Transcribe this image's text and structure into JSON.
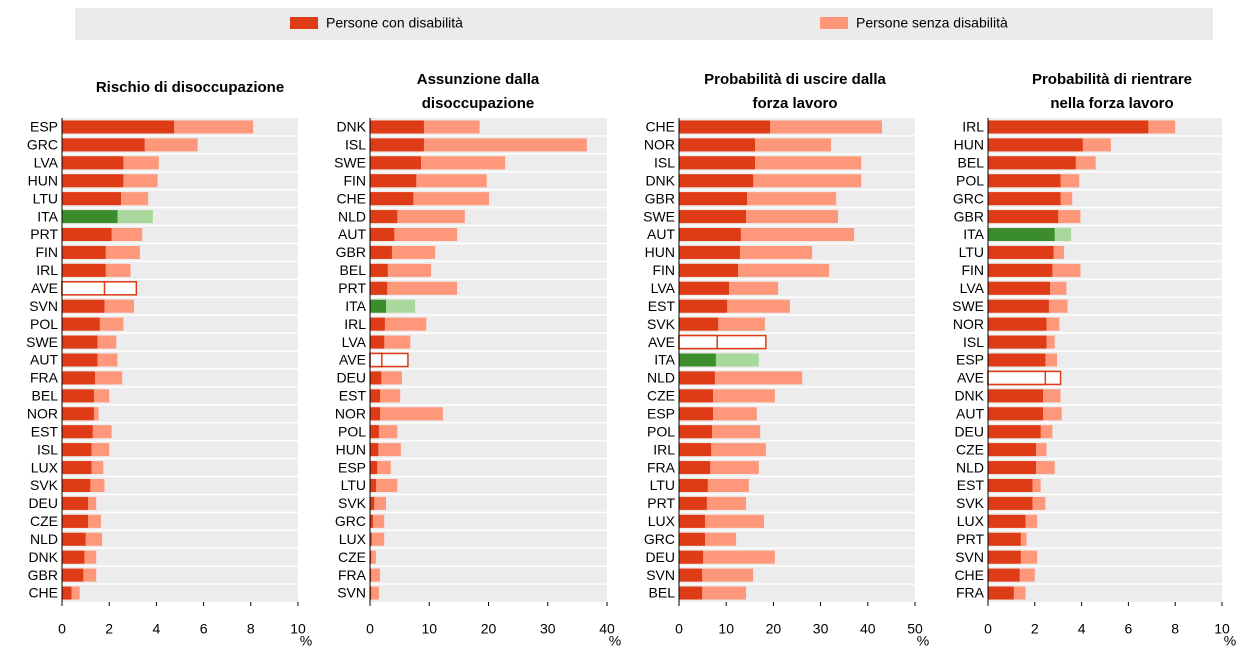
{
  "legend_position": "top",
  "chart_data": [
    {
      "type": "bar",
      "orientation": "horizontal",
      "title": [
        "Rischio di disoccupazione"
      ],
      "x_unit": "%",
      "highlight_category": "ITA",
      "outline_category": "AVE",
      "categories": [
        "ESP",
        "GRC",
        "LVA",
        "HUN",
        "LTU",
        "ITA",
        "PRT",
        "FIN",
        "IRL",
        "AVE",
        "SVN",
        "POL",
        "SWE",
        "AUT",
        "FRA",
        "BEL",
        "NOR",
        "EST",
        "ISL",
        "LUX",
        "SVK",
        "DEU",
        "CZE",
        "NLD",
        "DNK",
        "GBR",
        "CHE"
      ],
      "series": [
        {
          "name": "Persone senza disabilità",
          "color": "#ff977a",
          "highlight_color": "#a8d89c",
          "values": [
            8.1,
            5.75,
            4.1,
            4.05,
            3.65,
            3.85,
            3.4,
            3.3,
            2.9,
            3.15,
            3.05,
            2.6,
            2.3,
            2.35,
            2.55,
            2.0,
            1.55,
            2.1,
            2.0,
            1.75,
            1.8,
            1.45,
            1.65,
            1.7,
            1.45,
            1.45,
            0.75
          ]
        },
        {
          "name": "Persone con disabilità",
          "color": "#de3b17",
          "highlight_color": "#3b8c2c",
          "values": [
            4.75,
            3.5,
            2.6,
            2.6,
            2.5,
            2.35,
            2.1,
            1.85,
            1.85,
            1.8,
            1.8,
            1.6,
            1.5,
            1.5,
            1.4,
            1.35,
            1.35,
            1.3,
            1.25,
            1.25,
            1.2,
            1.1,
            1.1,
            1.0,
            0.95,
            0.9,
            0.4
          ]
        }
      ],
      "xlim": [
        0,
        10
      ],
      "xticks": [
        0,
        2,
        4,
        6,
        8,
        10
      ]
    },
    {
      "type": "bar",
      "orientation": "horizontal",
      "title": [
        "Assunzione dalla",
        "disoccupazione"
      ],
      "x_unit": "%",
      "highlight_category": "ITA",
      "outline_category": "AVE",
      "categories": [
        "DNK",
        "ISL",
        "SWE",
        "FIN",
        "CHE",
        "NLD",
        "AUT",
        "GBR",
        "BEL",
        "PRT",
        "ITA",
        "IRL",
        "LVA",
        "AVE",
        "DEU",
        "EST",
        "NOR",
        "POL",
        "HUN",
        "ESP",
        "LTU",
        "SVK",
        "GRC",
        "LUX",
        "CZE",
        "FRA",
        "SVN"
      ],
      "series": [
        {
          "name": "Persone senza disabilità",
          "color": "#ff977a",
          "highlight_color": "#a8d89c",
          "values": [
            18.5,
            36.6,
            22.8,
            19.7,
            20.1,
            16.0,
            14.7,
            11.0,
            10.3,
            14.7,
            7.6,
            9.5,
            6.8,
            6.4,
            5.4,
            5.1,
            12.3,
            4.6,
            5.2,
            3.5,
            4.6,
            2.7,
            2.4,
            2.4,
            1.0,
            1.7,
            1.5
          ]
        },
        {
          "name": "Persone con disabilità",
          "color": "#de3b17",
          "highlight_color": "#3b8c2c",
          "values": [
            9.1,
            9.1,
            8.6,
            7.8,
            7.3,
            4.6,
            4.1,
            3.7,
            3.0,
            2.9,
            2.7,
            2.5,
            2.4,
            2.0,
            1.9,
            1.7,
            1.7,
            1.5,
            1.4,
            1.2,
            1.0,
            0.7,
            0.5,
            0.3,
            0.2,
            0.2,
            0.2
          ]
        }
      ],
      "xlim": [
        0,
        40
      ],
      "xticks": [
        0,
        10,
        20,
        30,
        40
      ]
    },
    {
      "type": "bar",
      "orientation": "horizontal",
      "title": [
        "Probabilità di uscire dalla",
        "forza lavoro"
      ],
      "x_unit": "%",
      "highlight_category": "ITA",
      "outline_category": "AVE",
      "categories": [
        "CHE",
        "NOR",
        "ISL",
        "DNK",
        "GBR",
        "SWE",
        "AUT",
        "HUN",
        "FIN",
        "LVA",
        "EST",
        "SVK",
        "AVE",
        "ITA",
        "NLD",
        "CZE",
        "ESP",
        "POL",
        "IRL",
        "FRA",
        "LTU",
        "PRT",
        "LUX",
        "GRC",
        "DEU",
        "SVN",
        "BEL"
      ],
      "series": [
        {
          "name": "Persone senza disabilità",
          "color": "#ff977a",
          "highlight_color": "#a8d89c",
          "values": [
            43.0,
            32.2,
            38.6,
            38.6,
            33.3,
            33.7,
            37.1,
            28.2,
            31.8,
            21.0,
            23.5,
            18.2,
            18.4,
            16.9,
            26.1,
            20.3,
            16.5,
            17.2,
            18.4,
            16.9,
            14.8,
            14.2,
            18.0,
            12.1,
            20.3,
            15.7,
            14.2
          ]
        },
        {
          "name": "Persone con disabilità",
          "color": "#de3b17",
          "highlight_color": "#3b8c2c",
          "values": [
            19.3,
            16.1,
            16.1,
            15.7,
            14.4,
            14.2,
            13.1,
            12.9,
            12.5,
            10.6,
            10.2,
            8.3,
            8.1,
            7.8,
            7.6,
            7.2,
            7.2,
            7.0,
            6.8,
            6.6,
            6.1,
            5.9,
            5.5,
            5.5,
            5.1,
            4.9,
            4.9
          ]
        }
      ],
      "xlim": [
        0,
        50
      ],
      "xticks": [
        0,
        10,
        20,
        30,
        40,
        50
      ]
    },
    {
      "type": "bar",
      "orientation": "horizontal",
      "title": [
        "Probabilità di rientrare",
        "nella forza lavoro"
      ],
      "x_unit": "%",
      "highlight_category": "ITA",
      "outline_category": "AVE",
      "categories": [
        "IRL",
        "HUN",
        "BEL",
        "POL",
        "GRC",
        "GBR",
        "ITA",
        "LTU",
        "FIN",
        "LVA",
        "SWE",
        "NOR",
        "ISL",
        "ESP",
        "AVE",
        "DNK",
        "AUT",
        "DEU",
        "CZE",
        "NLD",
        "EST",
        "SVK",
        "LUX",
        "PRT",
        "SVN",
        "CHE",
        "FRA"
      ],
      "series": [
        {
          "name": "Persone senza disabilità",
          "color": "#ff977a",
          "highlight_color": "#a8d89c",
          "values": [
            8.0,
            5.25,
            4.6,
            3.9,
            3.6,
            3.95,
            3.55,
            3.25,
            3.95,
            3.35,
            3.4,
            3.05,
            2.85,
            2.95,
            3.1,
            3.1,
            3.15,
            2.75,
            2.5,
            2.85,
            2.25,
            2.45,
            2.1,
            1.65,
            2.1,
            2.0,
            1.6
          ]
        },
        {
          "name": "Persone con disabilità",
          "color": "#de3b17",
          "highlight_color": "#3b8c2c",
          "values": [
            6.85,
            4.05,
            3.75,
            3.1,
            3.1,
            3.0,
            2.85,
            2.8,
            2.75,
            2.65,
            2.6,
            2.5,
            2.5,
            2.45,
            2.45,
            2.35,
            2.35,
            2.25,
            2.05,
            2.05,
            1.9,
            1.9,
            1.6,
            1.4,
            1.4,
            1.35,
            1.1
          ]
        }
      ],
      "xlim": [
        0,
        10
      ],
      "xticks": [
        0,
        2,
        4,
        6,
        8,
        10
      ]
    }
  ]
}
